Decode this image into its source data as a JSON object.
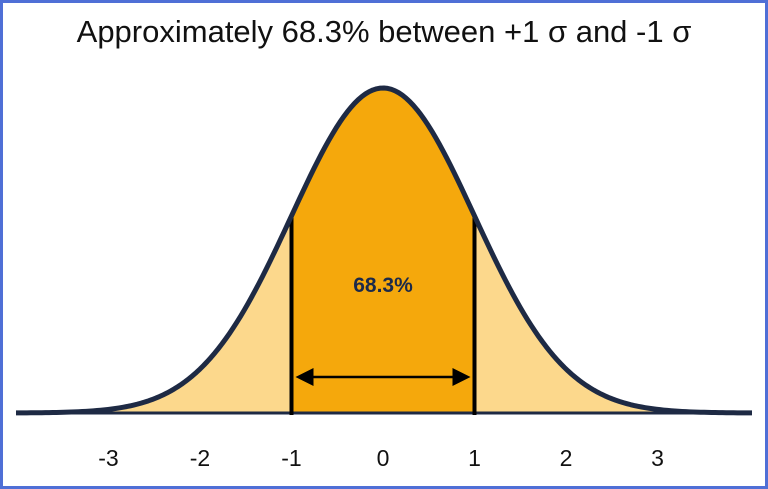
{
  "chart_data": {
    "type": "area",
    "title": "Approximately 68.3% between +1 σ and -1 σ",
    "distribution": "normal",
    "mean": 0,
    "std_dev": 1,
    "xlim": [
      -4,
      4
    ],
    "x_ticks": [
      -3,
      -2,
      -1,
      0,
      1,
      2,
      3
    ],
    "x_tick_labels": [
      "-3",
      "-2",
      "-1",
      "0",
      "1",
      "2",
      "3"
    ],
    "shaded_region": {
      "from": -1,
      "to": 1,
      "label": "68.3%",
      "color": "#f5a80c"
    },
    "outer_fill_color": "#fcd88c",
    "curve_color": "#1e2a44",
    "grid": false,
    "legend": "none"
  }
}
